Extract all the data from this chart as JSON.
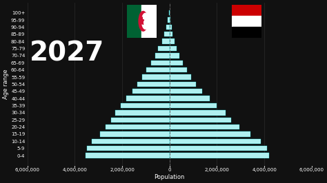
{
  "year": "2027",
  "age_groups": [
    "0-4",
    "5-9",
    "10-14",
    "15-19",
    "20-24",
    "25-29",
    "30-34",
    "35-39",
    "40-44",
    "45-49",
    "50-54",
    "55-59",
    "60-64",
    "65-69",
    "70-74",
    "75-79",
    "80-84",
    "85-89",
    "90-94",
    "95-99",
    "100+"
  ],
  "algeria": [
    3550000,
    3500000,
    3300000,
    2950000,
    2700000,
    2480000,
    2300000,
    2050000,
    1820000,
    1580000,
    1350000,
    1150000,
    980000,
    780000,
    620000,
    480000,
    320000,
    220000,
    150000,
    80000,
    30000
  ],
  "yemen": [
    4200000,
    4100000,
    3850000,
    3400000,
    2950000,
    2600000,
    2350000,
    2000000,
    1700000,
    1380000,
    1100000,
    900000,
    720000,
    560000,
    420000,
    300000,
    200000,
    130000,
    80000,
    40000,
    15000
  ],
  "bar_color": "#b0f0f0",
  "bar_edge_color": "#00dddd",
  "bar_alpha": 1.0,
  "background_color": "#111111",
  "text_color": "#ffffff",
  "grid_color": "#333333",
  "year_fontsize": 28,
  "axis_label_fontsize": 6,
  "tick_fontsize": 5,
  "xlim": [
    -6000000,
    6000000
  ],
  "xlabel": "Population",
  "ylabel": "Age range",
  "xticks": [
    -6000000,
    -4000000,
    -2000000,
    0,
    2000000,
    4000000,
    6000000
  ],
  "xlabels": [
    "6,000,000",
    "4,000,000",
    "2,000,000",
    "0",
    "2,000,000",
    "4,000,000",
    "6,000,000"
  ]
}
